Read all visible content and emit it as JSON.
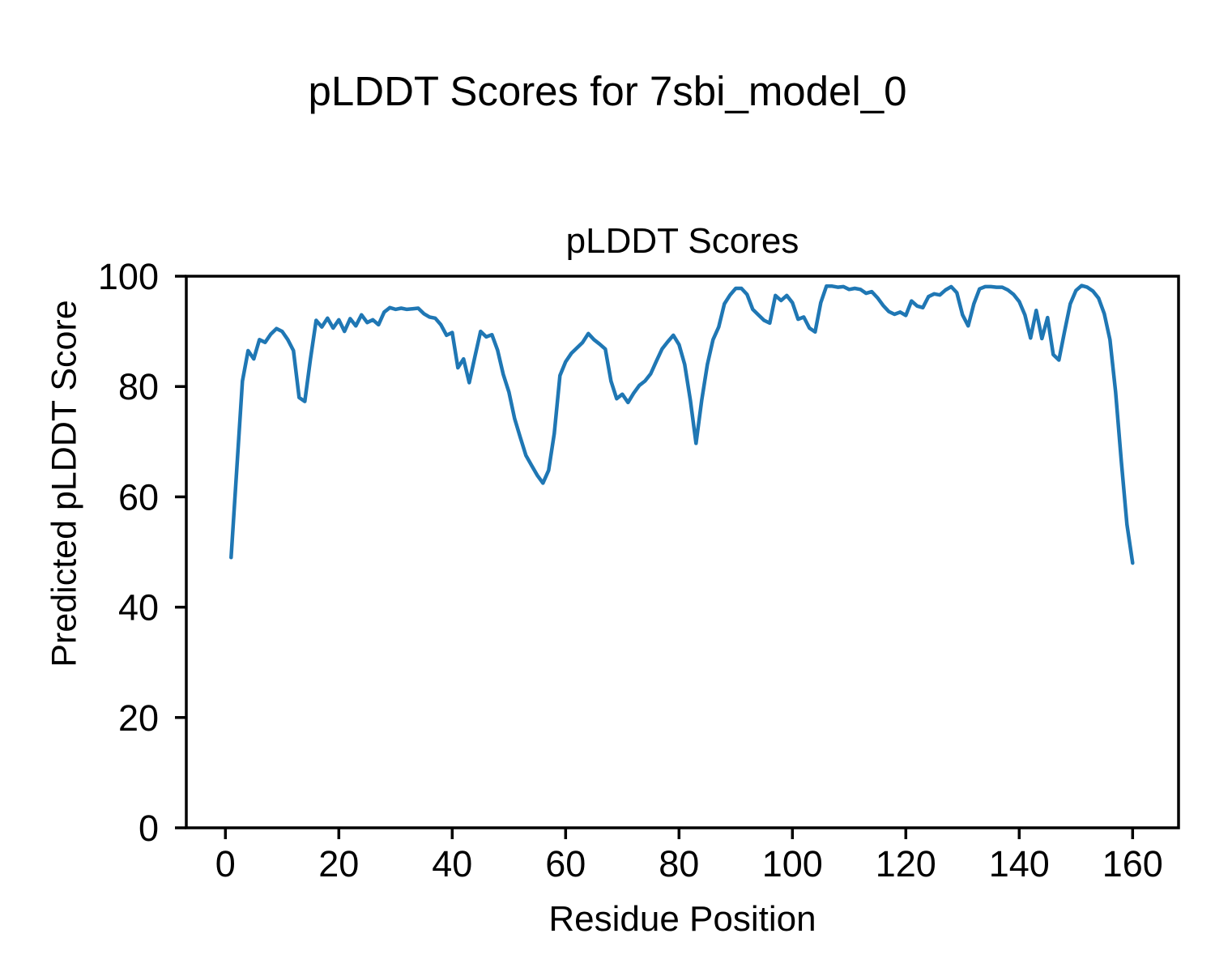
{
  "figure": {
    "suptitle": "pLDDT Scores for 7sbi_model_0",
    "background_color": "#ffffff",
    "text_color": "#000000"
  },
  "chart_data": {
    "type": "line",
    "title": "pLDDT Scores",
    "xlabel": "Residue Position",
    "ylabel": "Predicted pLDDT Score",
    "xlim": [
      -6.9,
      168.1
    ],
    "ylim": [
      0,
      100
    ],
    "x_ticks": [
      0,
      20,
      40,
      60,
      80,
      100,
      120,
      140,
      160
    ],
    "y_ticks": [
      0,
      20,
      40,
      60,
      80,
      100
    ],
    "grid": false,
    "legend_position": "none",
    "line_color": "#1f77b4",
    "axis_color": "#000000",
    "series": [
      {
        "name": "pLDDT",
        "x": [
          1,
          2,
          3,
          4,
          5,
          6,
          7,
          8,
          9,
          10,
          11,
          12,
          13,
          14,
          15,
          16,
          17,
          18,
          19,
          20,
          21,
          22,
          23,
          24,
          25,
          26,
          27,
          28,
          29,
          30,
          31,
          32,
          33,
          34,
          35,
          36,
          37,
          38,
          39,
          40,
          41,
          42,
          43,
          44,
          45,
          46,
          47,
          48,
          49,
          50,
          51,
          52,
          53,
          54,
          55,
          56,
          57,
          58,
          59,
          60,
          61,
          62,
          63,
          64,
          65,
          66,
          67,
          68,
          69,
          70,
          71,
          72,
          73,
          74,
          75,
          76,
          77,
          78,
          79,
          80,
          81,
          82,
          83,
          84,
          85,
          86,
          87,
          88,
          89,
          90,
          91,
          92,
          93,
          94,
          95,
          96,
          97,
          98,
          99,
          100,
          101,
          102,
          103,
          104,
          105,
          106,
          107,
          108,
          109,
          110,
          111,
          112,
          113,
          114,
          115,
          116,
          117,
          118,
          119,
          120,
          121,
          122,
          123,
          124,
          125,
          126,
          127,
          128,
          129,
          130,
          131,
          132,
          133,
          134,
          135,
          136,
          137,
          138,
          139,
          140,
          141,
          142,
          143,
          144,
          145,
          146,
          147,
          148,
          149,
          150,
          151,
          152,
          153,
          154,
          155,
          156,
          157,
          158,
          159,
          160
        ],
        "values": [
          49.0,
          65.0,
          81.0,
          86.5,
          85.0,
          88.5,
          88.0,
          89.5,
          90.5,
          90.0,
          88.5,
          86.5,
          78.0,
          77.3,
          85.0,
          92.0,
          90.8,
          92.4,
          90.6,
          92.1,
          90.0,
          92.3,
          91.0,
          93.0,
          91.6,
          92.1,
          91.2,
          93.5,
          94.3,
          94.0,
          94.2,
          94.0,
          94.1,
          94.2,
          93.2,
          92.6,
          92.4,
          91.2,
          89.3,
          89.8,
          83.4,
          85.0,
          80.7,
          85.4,
          90.0,
          89.0,
          89.4,
          86.6,
          82.2,
          79.0,
          74.2,
          70.8,
          67.5,
          65.7,
          63.9,
          62.5,
          64.8,
          71.5,
          82.0,
          84.5,
          86.0,
          87.0,
          88.0,
          89.6,
          88.5,
          87.7,
          86.8,
          81.0,
          77.8,
          78.6,
          77.1,
          78.8,
          80.2,
          81.0,
          82.3,
          84.6,
          86.8,
          88.1,
          89.3,
          87.6,
          84.0,
          77.5,
          69.7,
          77.5,
          84.0,
          88.5,
          90.8,
          95.0,
          96.6,
          97.8,
          97.8,
          96.7,
          94.0,
          93.0,
          92.0,
          91.5,
          96.5,
          95.6,
          96.5,
          95.2,
          92.2,
          92.6,
          90.6,
          89.9,
          95.2,
          98.2,
          98.2,
          98.0,
          98.1,
          97.6,
          97.8,
          97.6,
          96.9,
          97.2,
          96.1,
          94.7,
          93.6,
          93.1,
          93.5,
          92.9,
          95.5,
          94.6,
          94.3,
          96.3,
          96.8,
          96.6,
          97.5,
          98.1,
          97.0,
          93.0,
          91.0,
          95.0,
          97.7,
          98.1,
          98.1,
          98.0,
          98.0,
          97.5,
          96.7,
          95.4,
          93.0,
          88.8,
          93.8,
          88.7,
          92.5,
          85.8,
          84.8,
          90.0,
          95.0,
          97.4,
          98.3,
          98.0,
          97.3,
          96.0,
          93.2,
          88.5,
          79.0,
          66.5,
          55.0,
          48.0
        ]
      }
    ]
  }
}
